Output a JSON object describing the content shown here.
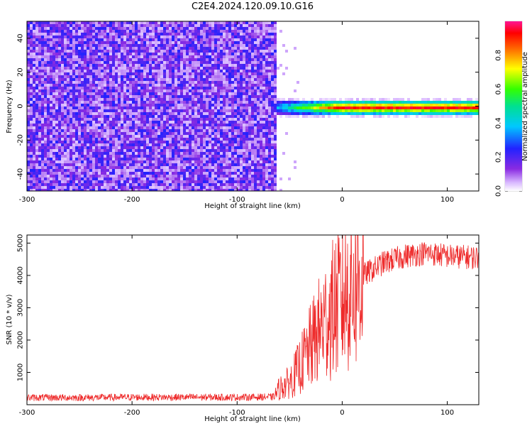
{
  "title": "C2E4.2024.120.09.10.G16",
  "colors": {
    "red_line": "#ee2b2b",
    "background": "#ffffff",
    "axis": "#000000"
  },
  "chart_data": [
    {
      "type": "heatmap",
      "title": "C2E4.2024.120.09.10.G16",
      "xlabel": "Height of straight line (km)",
      "ylabel": "Frequency (Hz)",
      "xlim": [
        -300,
        130
      ],
      "ylim": [
        -50,
        50
      ],
      "x_ticks": [
        "-300",
        "-200",
        "-100",
        "0",
        "100"
      ],
      "y_ticks": [
        "-40",
        "-20",
        "0",
        "20",
        "40"
      ],
      "colorbar": {
        "label": "Normalized spectral amplitude",
        "range": [
          0.0,
          1.0
        ],
        "ticks": [
          "0.0",
          "0.2",
          "0.4",
          "0.6",
          "0.8"
        ],
        "colormap": "rainbow (white-violet-blue-cyan-green-yellow-red-pink)"
      },
      "regions": [
        {
          "x_range": [
            -300,
            -65
          ],
          "freq_range": [
            -50,
            50
          ],
          "description_level": 0.25
        },
        {
          "x_range": [
            -65,
            130
          ],
          "freq_center": 0,
          "freq_halfwidth": 4,
          "peak_level": 0.95
        }
      ]
    },
    {
      "type": "line",
      "xlabel": "Height of straight line (km)",
      "ylabel": "SNR (10 * v/v)",
      "xlim": [
        -300,
        130
      ],
      "ylim": [
        0,
        5250
      ],
      "x_ticks": [
        "-300",
        "-200",
        "-100",
        "0",
        "100"
      ],
      "y_ticks": [
        "1000",
        "2000",
        "3000",
        "4000",
        "5000"
      ],
      "series": [
        {
          "color": "#ee2b2b",
          "x": [
            -300,
            -250,
            -200,
            -150,
            -100,
            -65,
            -60,
            -50,
            -40,
            -30,
            -20,
            -10,
            0,
            10,
            20,
            40,
            60,
            80,
            100,
            130
          ],
          "y": [
            220,
            220,
            230,
            230,
            230,
            240,
            500,
            700,
            1200,
            1800,
            2400,
            2900,
            3300,
            3700,
            4000,
            4400,
            4600,
            4700,
            4600,
            4550
          ]
        }
      ]
    }
  ]
}
